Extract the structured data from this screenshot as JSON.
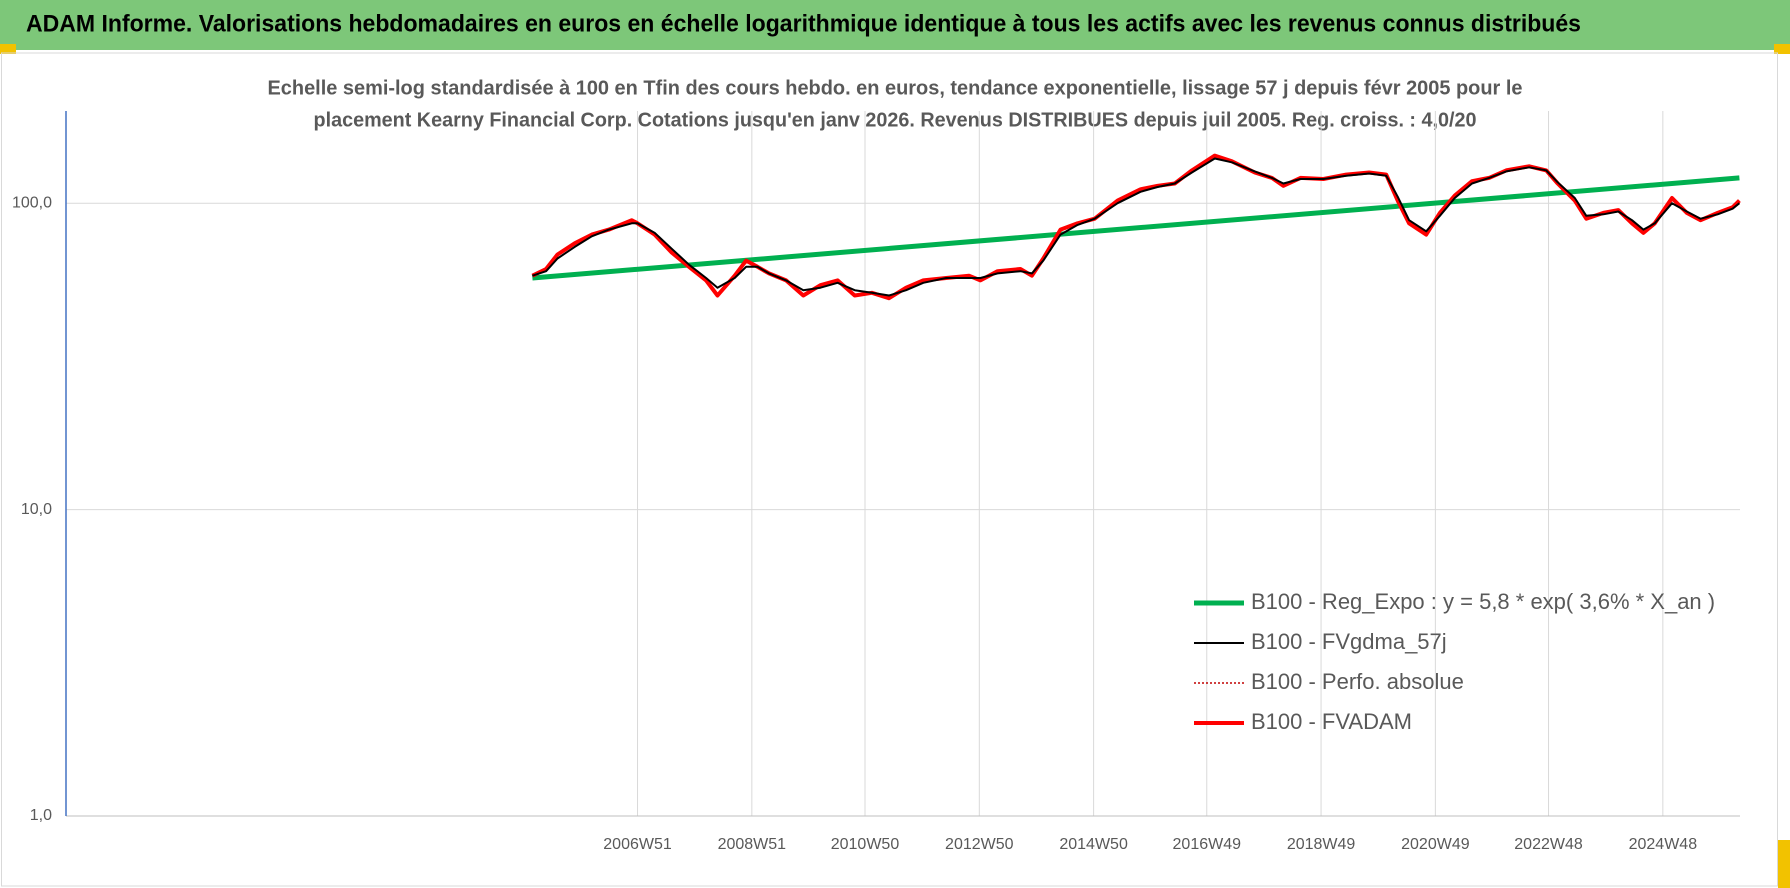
{
  "chart_data": {
    "type": "line",
    "title": "ADAM Informe. Valorisations hebdomadaires en euros en échelle logarithmique identique à tous les actifs avec les revenus connus distribués",
    "subtitle": [
      "Echelle semi-log standardisée à 100 en Tfin des cours hebdo. en euros, tendance exponentielle, lissage 57 j depuis févr 2005 pour le",
      "placement Kearny Financial Corp. Cotations jusqu'en janv 2026. Revenus DISTRIBUES depuis juil 2005. Reg. croiss. : 4,0/20"
    ],
    "log_scale": true,
    "grid": true,
    "legend": "right",
    "ylim": [
      1,
      200
    ],
    "yticks": [
      {
        "value": 1,
        "label": "1,0"
      },
      {
        "value": 10,
        "label": "10,0"
      },
      {
        "value": 100,
        "label": "100,0"
      }
    ],
    "xlim": [
      1996.96,
      2026.25
    ],
    "xticks": [
      {
        "value": 2006.96,
        "label": "2006W51"
      },
      {
        "value": 2008.96,
        "label": "2008W51"
      },
      {
        "value": 2010.94,
        "label": "2010W50"
      },
      {
        "value": 2012.94,
        "label": "2012W50"
      },
      {
        "value": 2014.94,
        "label": "2014W50"
      },
      {
        "value": 2016.92,
        "label": "2016W49"
      },
      {
        "value": 2018.92,
        "label": "2018W49"
      },
      {
        "value": 2020.92,
        "label": "2020W49"
      },
      {
        "value": 2022.9,
        "label": "2022W48"
      },
      {
        "value": 2024.9,
        "label": "2024W48"
      }
    ],
    "x": [
      2005.12,
      2005.36,
      2005.56,
      2005.86,
      2006.16,
      2006.46,
      2006.86,
      2006.96,
      2007.26,
      2007.56,
      2007.86,
      2008.16,
      2008.36,
      2008.66,
      2008.86,
      2009.06,
      2009.26,
      2009.56,
      2009.86,
      2010.16,
      2010.46,
      2010.76,
      2011.06,
      2011.36,
      2011.66,
      2011.96,
      2012.36,
      2012.76,
      2012.96,
      2013.26,
      2013.66,
      2013.86,
      2014.06,
      2014.36,
      2014.66,
      2014.96,
      2015.36,
      2015.76,
      2016.06,
      2016.36,
      2016.66,
      2017.06,
      2017.36,
      2017.76,
      2018.06,
      2018.26,
      2018.56,
      2018.96,
      2019.36,
      2019.76,
      2020.06,
      2020.26,
      2020.46,
      2020.76,
      2021.0,
      2021.26,
      2021.56,
      2021.86,
      2022.16,
      2022.56,
      2022.86,
      2023.06,
      2023.36,
      2023.56,
      2023.86,
      2024.12,
      2024.36,
      2024.56,
      2024.76,
      2025.06,
      2025.32,
      2025.56,
      2025.86,
      2026.12,
      2026.24
    ],
    "series": [
      {
        "name": "B100 - Reg_Expo : y = 5,8 * exp( 3,6% *  X_an )",
        "color": "#00b050",
        "style": "solid",
        "width": 5,
        "x": [
          2005.12,
          2026.24
        ],
        "values": [
          57,
          121
        ]
      },
      {
        "name": "B100 - FVgdma_57j",
        "color": "#000000",
        "style": "solid",
        "width": 2,
        "values": [
          58,
          60,
          66,
          72,
          78,
          82,
          86,
          86,
          80,
          71,
          63,
          57,
          53,
          57,
          62,
          62,
          59,
          56,
          52,
          53,
          55,
          52,
          51,
          50,
          52,
          55,
          57,
          57,
          57,
          59,
          60,
          59,
          65,
          79,
          85,
          89,
          100,
          109,
          113,
          116,
          126,
          140,
          136,
          127,
          121,
          116,
          120,
          120,
          123,
          125,
          123,
          105,
          88,
          81,
          91,
          104,
          116,
          121,
          127,
          131,
          128,
          117,
          104,
          91,
          92,
          94,
          88,
          82,
          86,
          100,
          94,
          89,
          92,
          96,
          100
        ]
      },
      {
        "name": "B100 - Perfo. absolue",
        "color": "#c00000",
        "style": "dotted",
        "width": 1.5,
        "values": [
          58,
          61,
          68,
          74,
          79,
          82,
          88,
          86,
          79,
          69,
          62,
          56,
          50,
          58,
          65,
          62,
          59,
          56,
          50,
          54,
          56,
          50,
          51,
          49,
          53,
          56,
          57,
          58,
          56,
          60,
          61,
          58,
          66,
          82,
          86,
          89,
          102,
          111,
          114,
          116,
          128,
          143,
          137,
          126,
          121,
          114,
          121,
          120,
          124,
          126,
          124,
          102,
          86,
          79,
          93,
          106,
          118,
          121,
          128,
          132,
          128,
          116,
          102,
          89,
          93,
          95,
          86,
          80,
          86,
          104,
          93,
          88,
          93,
          97,
          102
        ]
      },
      {
        "name": "B100 - FVADAM",
        "color": "#ff0000",
        "style": "solid",
        "width": 4,
        "values": [
          58,
          61,
          68,
          74,
          79,
          82,
          88,
          86,
          79,
          69,
          62,
          56,
          50,
          58,
          65,
          62,
          59,
          56,
          50,
          54,
          56,
          50,
          51,
          49,
          53,
          56,
          57,
          58,
          56,
          60,
          61,
          58,
          66,
          82,
          86,
          89,
          102,
          111,
          114,
          116,
          128,
          143,
          137,
          126,
          121,
          114,
          121,
          120,
          124,
          126,
          124,
          102,
          86,
          79,
          93,
          106,
          118,
          121,
          128,
          132,
          128,
          116,
          102,
          89,
          93,
          95,
          86,
          80,
          86,
          104,
          93,
          88,
          93,
          97,
          102
        ]
      }
    ]
  }
}
